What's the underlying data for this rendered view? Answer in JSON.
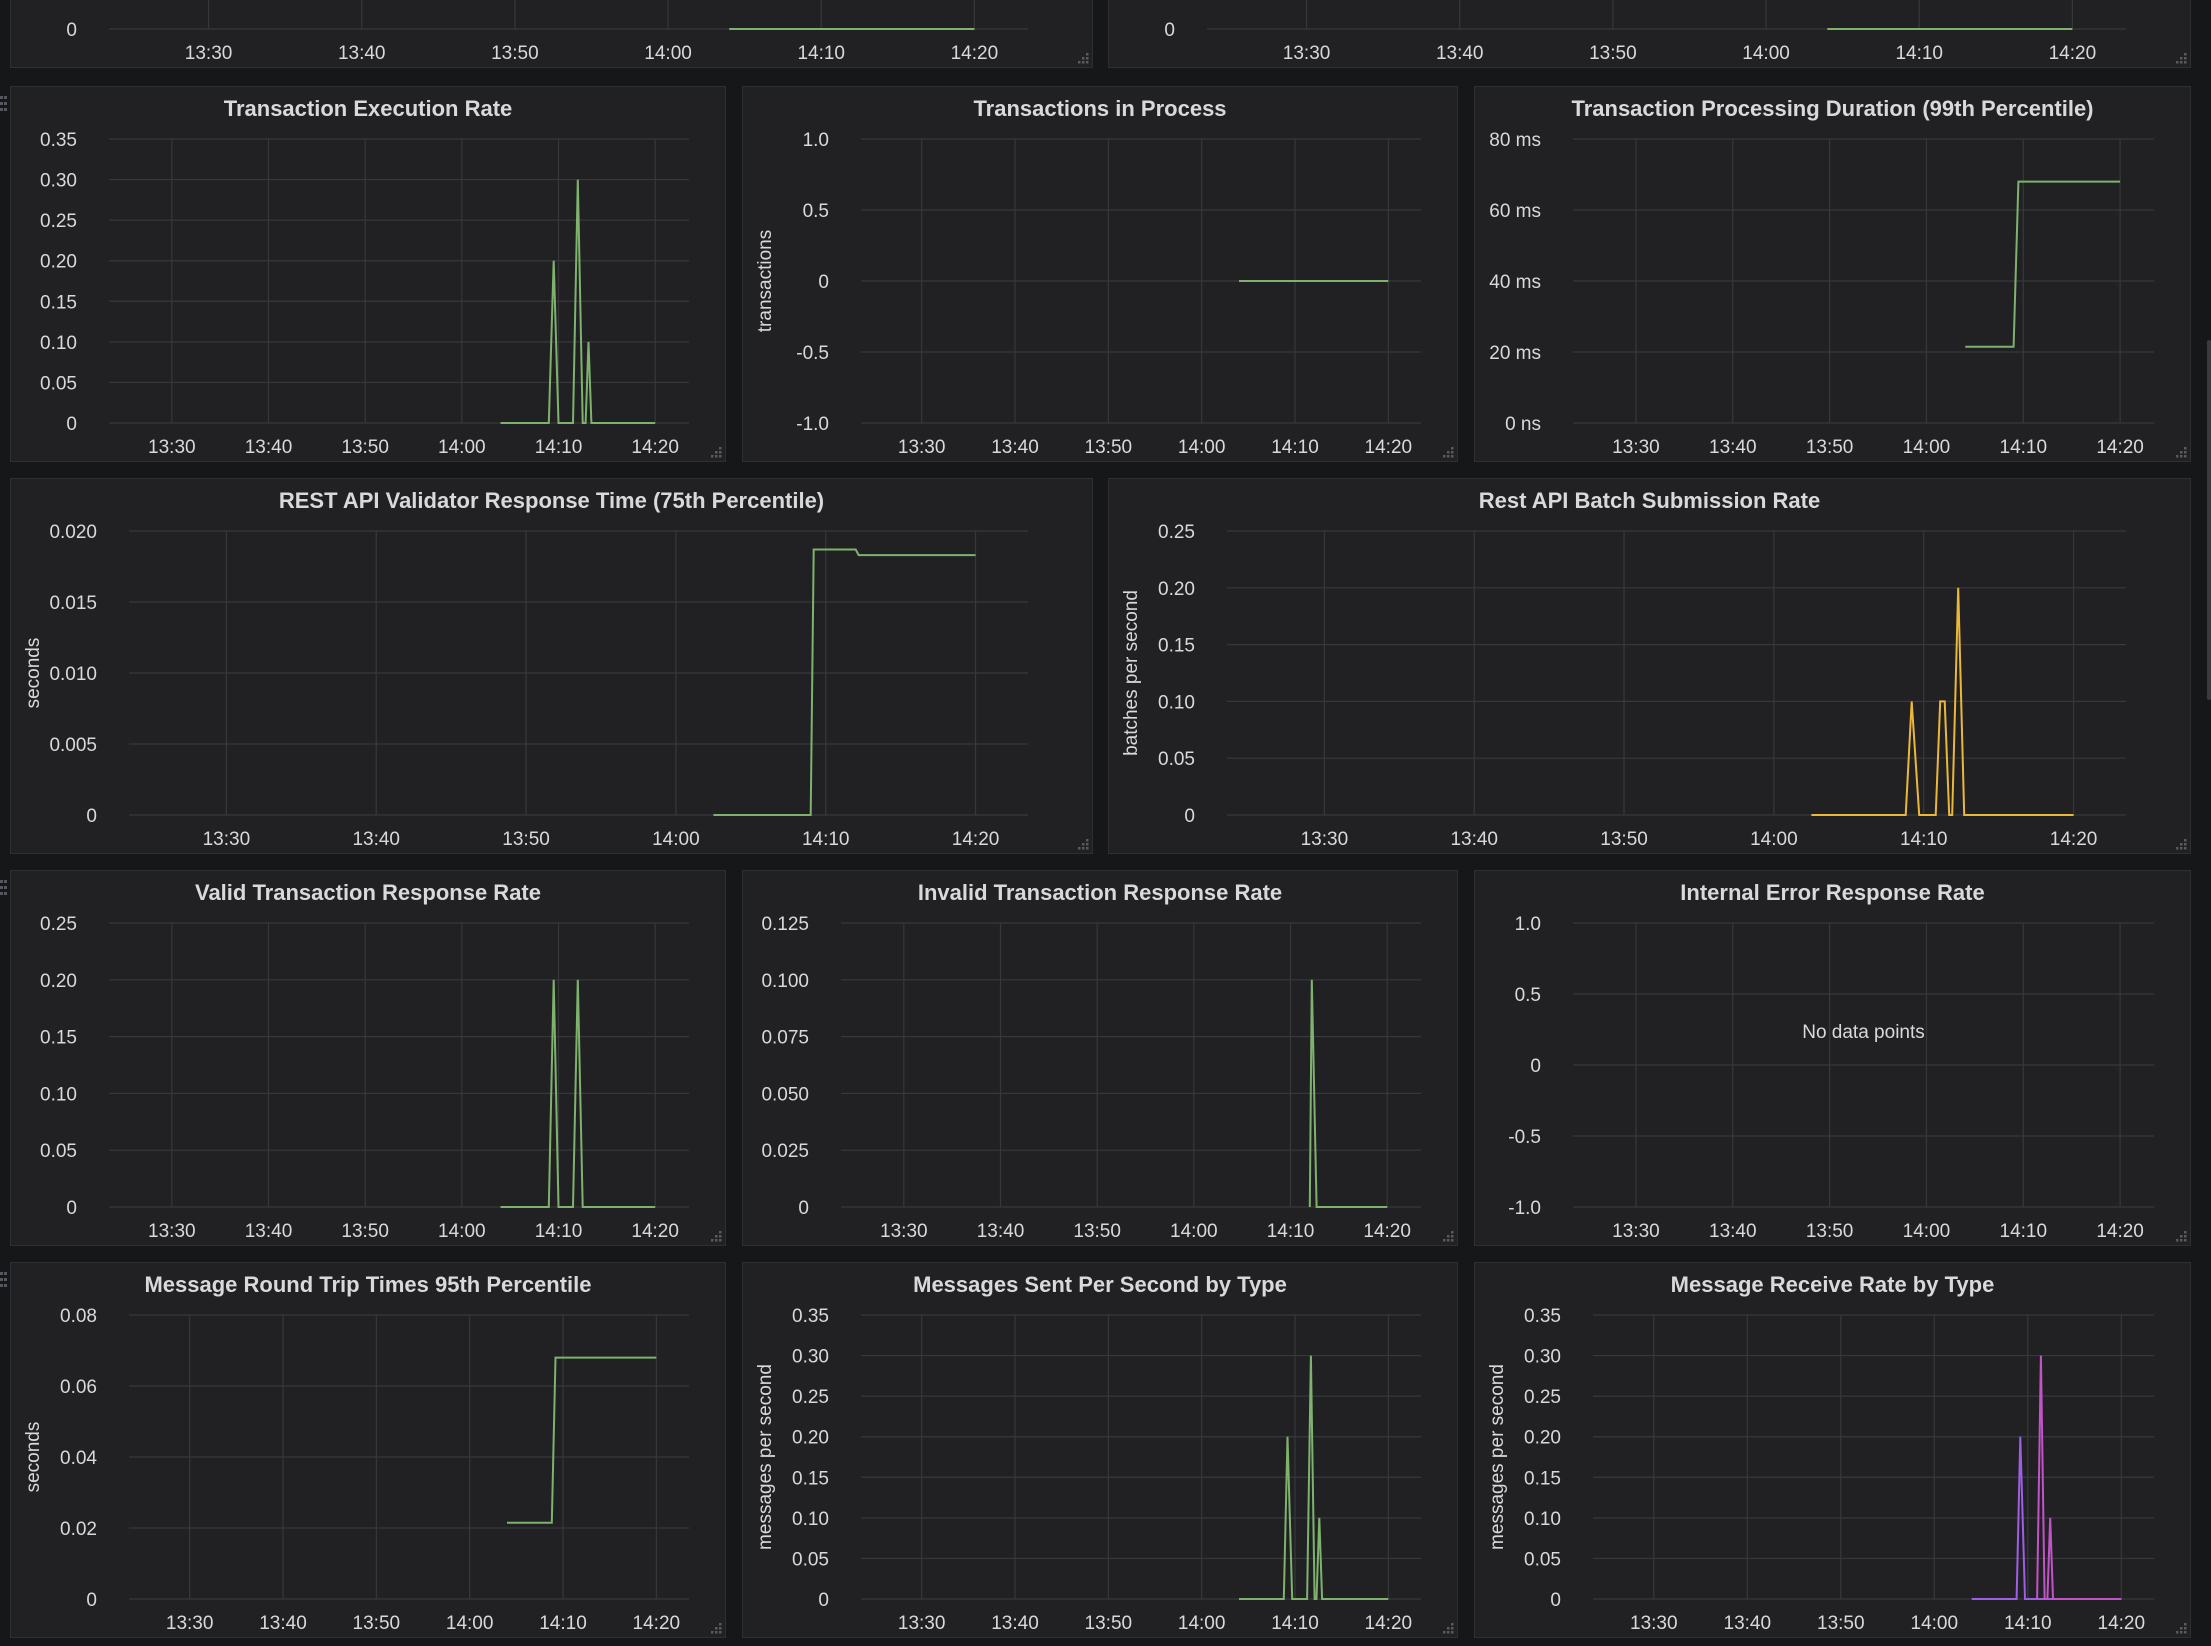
{
  "colors": {
    "green": "#7eb26d",
    "yellow": "#eab839",
    "magenta": "#c253c9",
    "purple": "#9e5ee6",
    "grid": "#37383c",
    "tick_text": "#d8d9da"
  },
  "panels": [
    {
      "id": "top-left-partial",
      "title": "",
      "ylabel": "",
      "y_ticks": [
        "0"
      ],
      "y_range": [
        0,
        1
      ],
      "x_ticks": [
        "13:30",
        "13:40",
        "13:50",
        "14:00",
        "14:10",
        "14:20"
      ],
      "series": [
        {
          "color_key": "green",
          "points": [
            [
              14.04,
              0
            ],
            [
              14.2,
              0
            ]
          ]
        }
      ]
    },
    {
      "id": "top-right-partial",
      "title": "",
      "ylabel": "",
      "y_ticks": [
        "0"
      ],
      "y_range": [
        0,
        1
      ],
      "x_ticks": [
        "13:30",
        "13:40",
        "13:50",
        "14:00",
        "14:10",
        "14:20"
      ],
      "series": [
        {
          "color_key": "green",
          "points": [
            [
              14.04,
              0
            ],
            [
              14.2,
              0
            ]
          ]
        }
      ]
    },
    {
      "id": "transaction-execution-rate",
      "title": "Transaction Execution Rate",
      "ylabel": "",
      "y_ticks": [
        "0.35",
        "0.30",
        "0.25",
        "0.20",
        "0.15",
        "0.10",
        "0.05",
        "0"
      ],
      "y_range": [
        0,
        0.35
      ],
      "x_ticks": [
        "13:30",
        "13:40",
        "13:50",
        "14:00",
        "14:10",
        "14:20"
      ],
      "series": [
        {
          "color_key": "green",
          "points": [
            [
              14.04,
              0
            ],
            [
              14.09,
              0
            ],
            [
              14.095,
              0.2
            ],
            [
              14.1,
              0
            ],
            [
              14.115,
              0
            ],
            [
              14.12,
              0.3
            ],
            [
              14.125,
              0
            ],
            [
              14.128,
              0
            ],
            [
              14.131,
              0.1
            ],
            [
              14.134,
              0
            ],
            [
              14.2,
              0
            ]
          ]
        }
      ]
    },
    {
      "id": "transactions-in-process",
      "title": "Transactions in Process",
      "ylabel": "transactions",
      "y_ticks": [
        "1.0",
        "0.5",
        "0",
        "-0.5",
        "-1.0"
      ],
      "y_range": [
        -1,
        1
      ],
      "x_ticks": [
        "13:30",
        "13:40",
        "13:50",
        "14:00",
        "14:10",
        "14:20"
      ],
      "series": [
        {
          "color_key": "green",
          "points": [
            [
              14.04,
              0
            ],
            [
              14.2,
              0
            ]
          ]
        }
      ]
    },
    {
      "id": "transaction-processing-duration",
      "title": "Transaction Processing Duration (99th Percentile)",
      "ylabel": "",
      "y_ticks": [
        "80 ms",
        "60 ms",
        "40 ms",
        "20 ms",
        "0 ns"
      ],
      "y_range": [
        0,
        80
      ],
      "x_ticks": [
        "13:30",
        "13:40",
        "13:50",
        "14:00",
        "14:10",
        "14:20"
      ],
      "series": [
        {
          "color_key": "green",
          "points": [
            [
              14.04,
              21.5
            ],
            [
              14.09,
              21.5
            ],
            [
              14.095,
              68
            ],
            [
              14.2,
              68
            ]
          ]
        }
      ]
    },
    {
      "id": "rest-api-validator-response-time",
      "title": "REST API Validator Response Time (75th Percentile)",
      "ylabel": "seconds",
      "y_ticks": [
        "0.020",
        "0.015",
        "0.010",
        "0.005",
        "0"
      ],
      "y_range": [
        0,
        0.02
      ],
      "x_ticks": [
        "13:30",
        "13:40",
        "13:50",
        "14:00",
        "14:10",
        "14:20"
      ],
      "series": [
        {
          "color_key": "green",
          "points": [
            [
              14.025,
              0
            ],
            [
              14.09,
              0
            ],
            [
              14.092,
              0.0187
            ],
            [
              14.12,
              0.0187
            ],
            [
              14.122,
              0.0183
            ],
            [
              14.2,
              0.0183
            ]
          ]
        }
      ]
    },
    {
      "id": "rest-api-batch-submission-rate",
      "title": "Rest API Batch Submission Rate",
      "ylabel": "batches per second",
      "y_ticks": [
        "0.25",
        "0.20",
        "0.15",
        "0.10",
        "0.05",
        "0"
      ],
      "y_range": [
        0,
        0.25
      ],
      "x_ticks": [
        "13:30",
        "13:40",
        "13:50",
        "14:00",
        "14:10",
        "14:20"
      ],
      "series": [
        {
          "color_key": "yellow",
          "points": [
            [
              14.025,
              0
            ],
            [
              14.088,
              0
            ],
            [
              14.092,
              0.1
            ],
            [
              14.097,
              0
            ],
            [
              14.108,
              0
            ],
            [
              14.111,
              0.1
            ],
            [
              14.114,
              0.1
            ],
            [
              14.117,
              0
            ],
            [
              14.119,
              0
            ],
            [
              14.123,
              0.2
            ],
            [
              14.127,
              0
            ],
            [
              14.2,
              0
            ]
          ]
        }
      ]
    },
    {
      "id": "valid-transaction-response-rate",
      "title": "Valid Transaction Response Rate",
      "ylabel": "",
      "y_ticks": [
        "0.25",
        "0.20",
        "0.15",
        "0.10",
        "0.05",
        "0"
      ],
      "y_range": [
        0,
        0.25
      ],
      "x_ticks": [
        "13:30",
        "13:40",
        "13:50",
        "14:00",
        "14:10",
        "14:20"
      ],
      "series": [
        {
          "color_key": "green",
          "points": [
            [
              14.04,
              0
            ],
            [
              14.09,
              0
            ],
            [
              14.095,
              0.2
            ],
            [
              14.1,
              0
            ],
            [
              14.115,
              0
            ],
            [
              14.12,
              0.2
            ],
            [
              14.125,
              0
            ],
            [
              14.2,
              0
            ]
          ]
        }
      ]
    },
    {
      "id": "invalid-transaction-response-rate",
      "title": "Invalid Transaction Response Rate",
      "ylabel": "",
      "y_ticks": [
        "0.125",
        "0.100",
        "0.075",
        "0.050",
        "0.025",
        "0"
      ],
      "y_range": [
        0,
        0.125
      ],
      "x_ticks": [
        "13:30",
        "13:40",
        "13:50",
        "14:00",
        "14:10",
        "14:20"
      ],
      "series": [
        {
          "color_key": "green",
          "points": [
            [
              14.12,
              0
            ],
            [
              14.122,
              0.1
            ],
            [
              14.127,
              0
            ],
            [
              14.2,
              0
            ]
          ]
        }
      ]
    },
    {
      "id": "internal-error-response-rate",
      "title": "Internal Error Response Rate",
      "ylabel": "",
      "y_ticks": [
        "1.0",
        "0.5",
        "0",
        "-0.5",
        "-1.0"
      ],
      "y_range": [
        -1,
        1
      ],
      "x_ticks": [
        "13:30",
        "13:40",
        "13:50",
        "14:00",
        "14:10",
        "14:20"
      ],
      "no_data_text": "No data points",
      "series": []
    },
    {
      "id": "message-round-trip-times",
      "title": "Message Round Trip Times 95th Percentile",
      "ylabel": "seconds",
      "y_ticks": [
        "0.08",
        "0.06",
        "0.04",
        "0.02",
        "0"
      ],
      "y_range": [
        0,
        0.08
      ],
      "x_ticks": [
        "13:30",
        "13:40",
        "13:50",
        "14:00",
        "14:10",
        "14:20"
      ],
      "series": [
        {
          "color_key": "green",
          "points": [
            [
              14.04,
              0.0215
            ],
            [
              14.088,
              0.0215
            ],
            [
              14.092,
              0.068
            ],
            [
              14.2,
              0.068
            ]
          ]
        }
      ]
    },
    {
      "id": "messages-sent-per-second",
      "title": "Messages Sent Per Second by Type",
      "ylabel": "messages per second",
      "y_ticks": [
        "0.35",
        "0.30",
        "0.25",
        "0.20",
        "0.15",
        "0.10",
        "0.05",
        "0"
      ],
      "y_range": [
        0,
        0.35
      ],
      "x_ticks": [
        "13:30",
        "13:40",
        "13:50",
        "14:00",
        "14:10",
        "14:20"
      ],
      "series": [
        {
          "color_key": "green",
          "points": [
            [
              14.04,
              0
            ],
            [
              14.088,
              0
            ],
            [
              14.092,
              0.2
            ],
            [
              14.097,
              0
            ],
            [
              14.113,
              0
            ],
            [
              14.117,
              0.3
            ],
            [
              14.121,
              0
            ],
            [
              14.123,
              0
            ],
            [
              14.126,
              0.1
            ],
            [
              14.129,
              0
            ],
            [
              14.2,
              0
            ]
          ]
        }
      ]
    },
    {
      "id": "message-receive-rate",
      "title": "Message Receive Rate by Type",
      "ylabel": "messages per second",
      "y_ticks": [
        "0.35",
        "0.30",
        "0.25",
        "0.20",
        "0.15",
        "0.10",
        "0.05",
        "0"
      ],
      "y_range": [
        0,
        0.35
      ],
      "x_ticks": [
        "13:30",
        "13:40",
        "13:50",
        "14:00",
        "14:10",
        "14:20"
      ],
      "series": [
        {
          "color_key": "purple",
          "points": [
            [
              14.04,
              0
            ],
            [
              14.088,
              0
            ],
            [
              14.092,
              0.2
            ],
            [
              14.097,
              0
            ],
            [
              14.2,
              0
            ]
          ]
        },
        {
          "color_key": "magenta",
          "points": [
            [
              14.11,
              0
            ],
            [
              14.114,
              0.3
            ],
            [
              14.118,
              0
            ],
            [
              14.121,
              0
            ],
            [
              14.124,
              0.1
            ],
            [
              14.127,
              0
            ],
            [
              14.2,
              0
            ]
          ]
        }
      ]
    }
  ]
}
